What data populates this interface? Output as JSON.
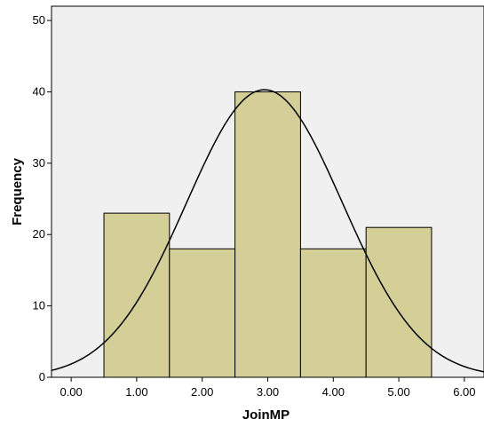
{
  "chart_data": {
    "type": "bar",
    "xlabel": "JoinMP",
    "ylabel": "Frequency",
    "xlim": [
      -0.3,
      6.3
    ],
    "ylim": [
      0,
      52
    ],
    "x_ticks": [
      "0.00",
      "1.00",
      "2.00",
      "3.00",
      "4.00",
      "5.00",
      "6.00"
    ],
    "x_tick_values": [
      0,
      1,
      2,
      3,
      4,
      5,
      6
    ],
    "y_ticks": [
      "0",
      "10",
      "20",
      "30",
      "40",
      "50"
    ],
    "y_tick_values": [
      0,
      10,
      20,
      30,
      40,
      50
    ],
    "bins": [
      {
        "start": 0.5,
        "end": 1.5,
        "value": 23
      },
      {
        "start": 1.5,
        "end": 2.5,
        "value": 18
      },
      {
        "start": 2.5,
        "end": 3.5,
        "value": 40
      },
      {
        "start": 3.5,
        "end": 4.5,
        "value": 18
      },
      {
        "start": 4.5,
        "end": 5.5,
        "value": 21
      }
    ],
    "normal_curve": {
      "mean": 2.95,
      "sd": 1.19,
      "peak": 40.3
    },
    "colors": {
      "plot_background": "#f0f0f0",
      "bar_fill": "#d4cf96",
      "stroke": "#000000"
    },
    "grid": false
  }
}
